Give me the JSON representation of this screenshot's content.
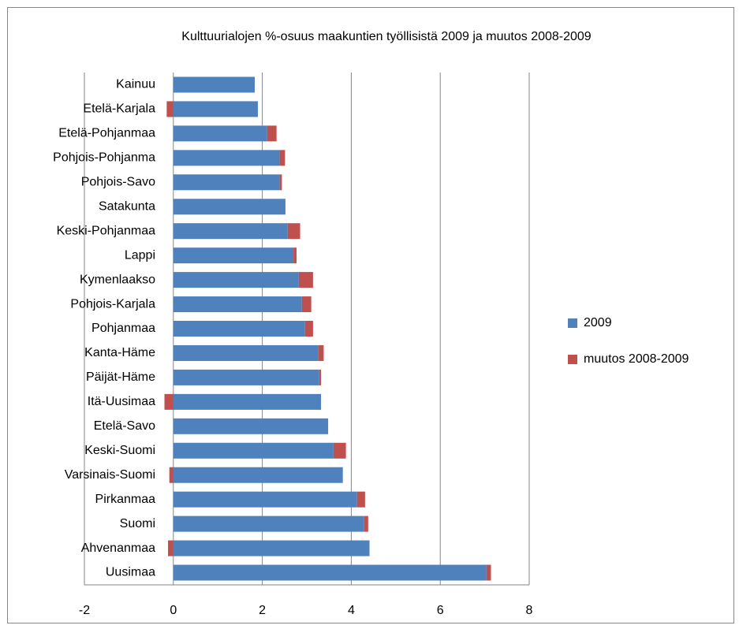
{
  "chart_data": {
    "type": "stacked_barh",
    "title": "Kulttuurialojen %-osuus maakuntien työllisistä 2009 ja muutos 2008-2009",
    "categories": [
      "Kainuu",
      "Etelä-Karjala",
      "Etelä-Pohjanmaa",
      "Pohjois-Pohjanma",
      "Pohjois-Savo",
      "Satakunta",
      "Keski-Pohjanmaa",
      "Lappi",
      "Kymenlaakso",
      "Pohjois-Karjala",
      "Pohjanmaa",
      "Kanta-Häme",
      "Päijät-Häme",
      "Itä-Uusimaa",
      "Etelä-Savo",
      "Keski-Suomi",
      "Varsinais-Suomi",
      "Pirkanmaa",
      "Suomi",
      "Ahvenanmaa",
      "Uusimaa"
    ],
    "series": [
      {
        "name": "2009",
        "color": "#4f81bd",
        "values": [
          1.83,
          1.9,
          2.11,
          2.39,
          2.39,
          2.52,
          2.57,
          2.7,
          2.82,
          2.89,
          2.96,
          3.26,
          3.28,
          3.32,
          3.48,
          3.6,
          3.81,
          4.13,
          4.29,
          4.41,
          7.04
        ]
      },
      {
        "name": "muutos 2008-2009",
        "color": "#c0504d",
        "values": [
          0,
          -0.15,
          0.21,
          0.12,
          0.05,
          0,
          0.28,
          0.07,
          0.32,
          0.21,
          0.18,
          0.12,
          0.04,
          -0.2,
          0,
          0.28,
          -0.09,
          0.18,
          0.09,
          -0.12,
          0.1
        ]
      }
    ],
    "xlim": [
      -2,
      8
    ],
    "xticks": [
      -2,
      0,
      2,
      4,
      6,
      8
    ],
    "grid": true,
    "legend": "right"
  }
}
